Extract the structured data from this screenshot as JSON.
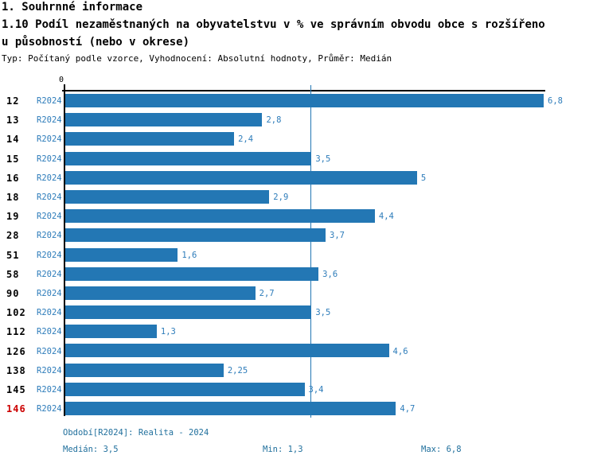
{
  "header": {
    "title1": "1. Souhrnné informace",
    "title2": "1.10 Podíl nezaměstnaných na obyvatelstvu v % ve správním obvodu obce s rozšířeno",
    "title3": "u působností (nebo v okrese)",
    "meta": "Typ: Počítaný podle vzorce, Vyhodnocení: Absolutní hodnoty, Průměr: Medián"
  },
  "chart_data": {
    "type": "bar",
    "orientation": "horizontal",
    "axis_zero_label": "0",
    "series_label": "R2024",
    "categories": [
      "12",
      "13",
      "14",
      "15",
      "16",
      "18",
      "19",
      "28",
      "51",
      "58",
      "90",
      "102",
      "112",
      "126",
      "138",
      "145",
      "146"
    ],
    "values": [
      6.8,
      2.8,
      2.4,
      3.5,
      5,
      2.9,
      4.4,
      3.7,
      1.6,
      3.6,
      2.7,
      3.5,
      1.3,
      4.6,
      2.25,
      3.4,
      4.7
    ],
    "value_labels": [
      "6,8",
      "2,8",
      "2,4",
      "3,5",
      "5",
      "2,9",
      "4,4",
      "3,7",
      "1,6",
      "3,6",
      "2,7",
      "3,5",
      "1,3",
      "4,6",
      "2,25",
      "3,4",
      "4,7"
    ],
    "highlighted_category": "146",
    "median_line_value": 3.5,
    "xlim": [
      0,
      6.8
    ],
    "grid": false,
    "legend": "none",
    "colors": {
      "bar": "#2377b4",
      "bar_value_label": "#2d7cba",
      "series_label": "#2d7cba",
      "category_label": "#000000",
      "highlighted_category": "#cc0000",
      "axis": "#000000",
      "median_line": "#2377b4",
      "footer_text": "#21709d"
    }
  },
  "footer": {
    "period": "Období[R2024]: Realita - 2024",
    "median": "Medián: 3,5",
    "min": "Min: 1,3",
    "max": "Max: 6,8"
  }
}
